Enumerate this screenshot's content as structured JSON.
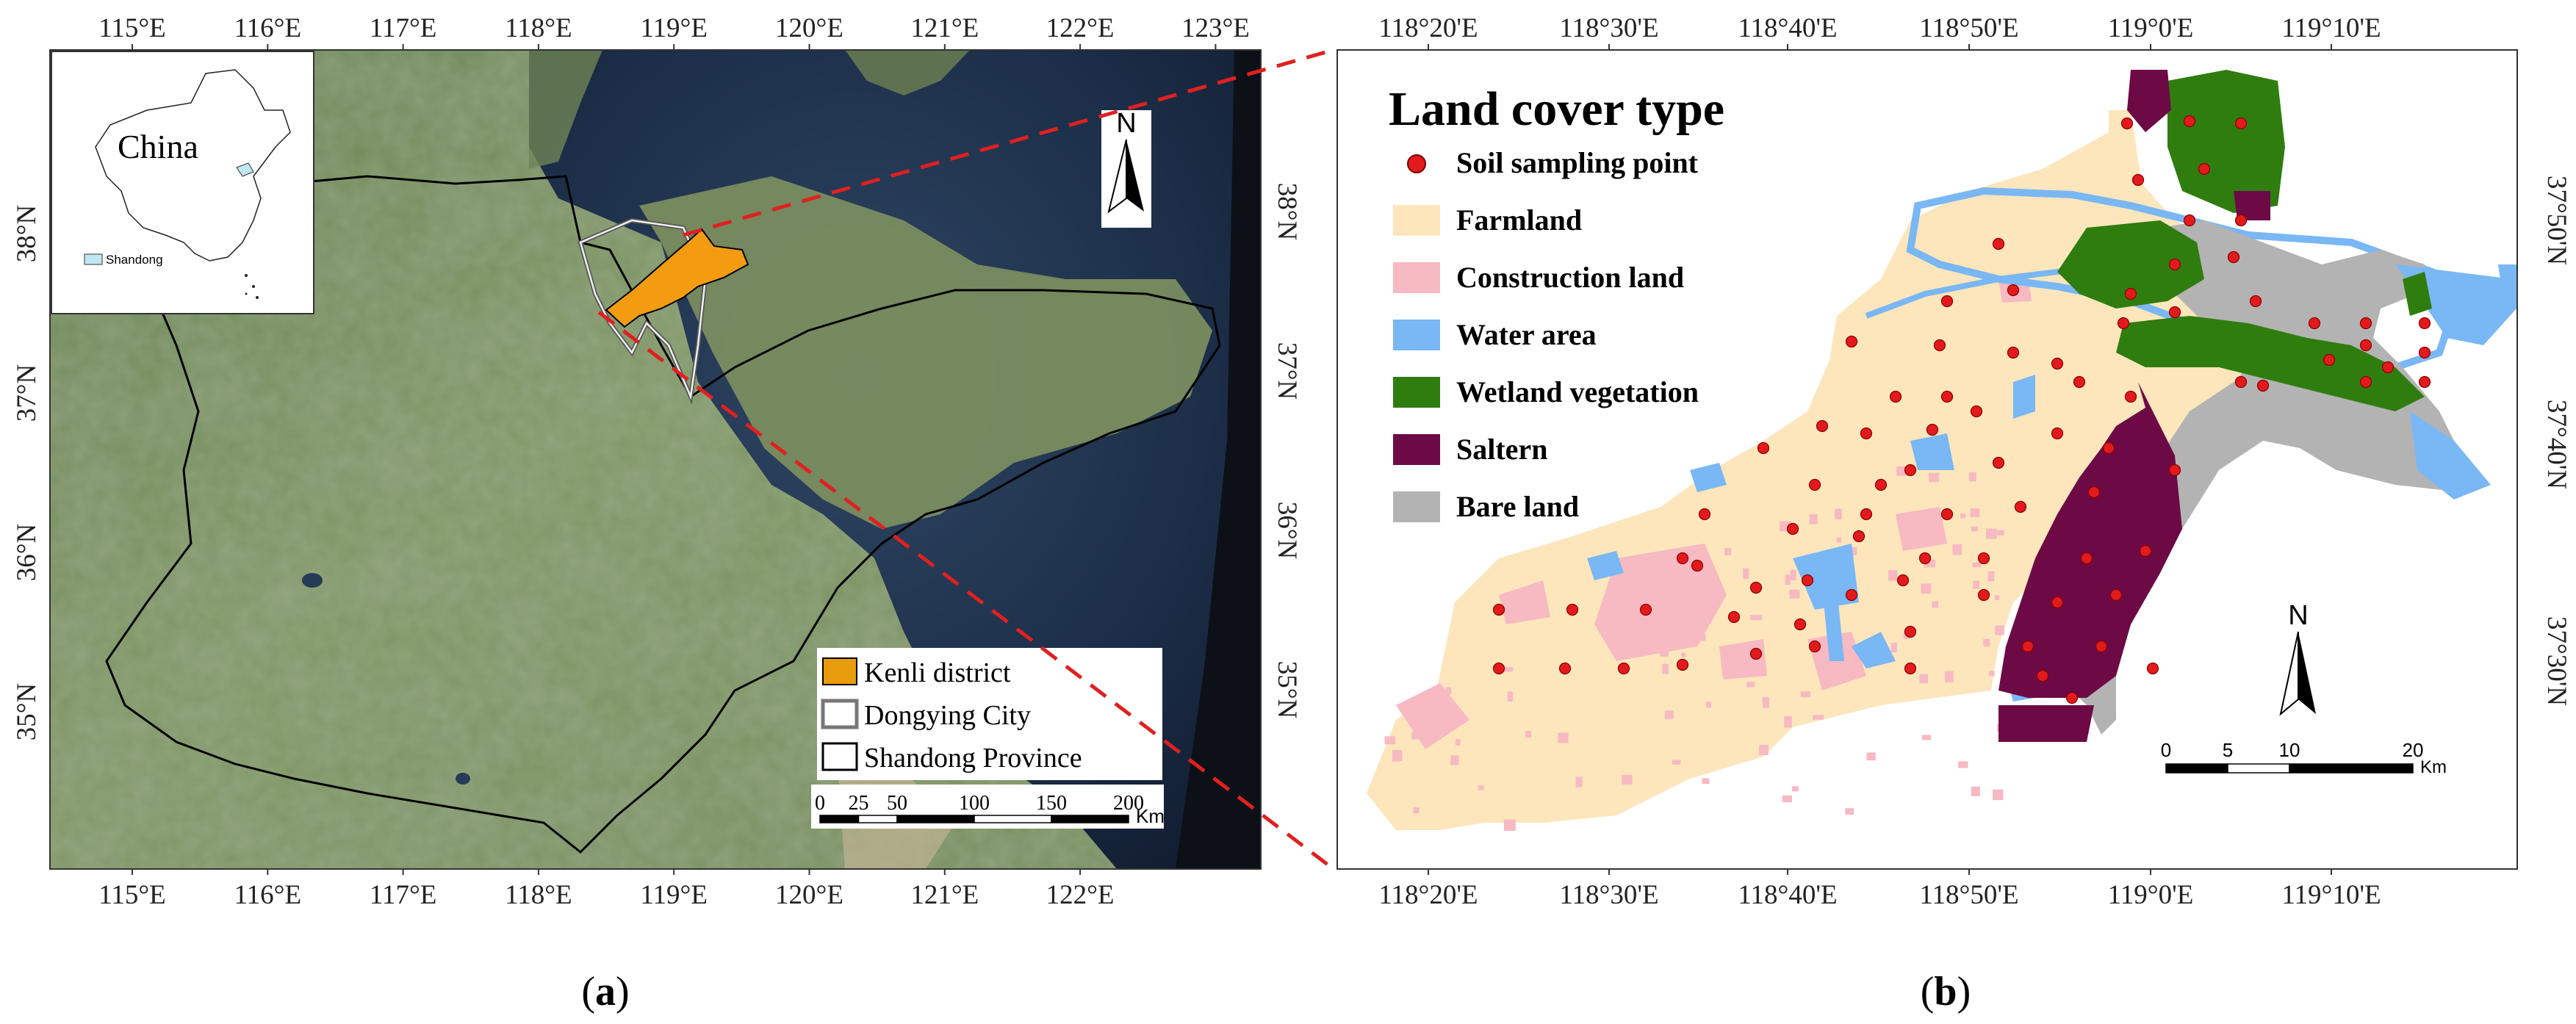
{
  "panel_a": {
    "caption_open": "(",
    "caption_letter": "a",
    "caption_close": ")",
    "top_ticks": [
      "115°E",
      "116°E",
      "117°E",
      "118°E",
      "119°E",
      "120°E",
      "121°E",
      "122°E",
      "123°E"
    ],
    "bottom_ticks": [
      "115°E",
      "116°E",
      "117°E",
      "118°E",
      "119°E",
      "120°E",
      "121°E",
      "122°E"
    ],
    "left_ticks": [
      "38°N",
      "37°N",
      "36°N",
      "35°N"
    ],
    "right_ticks": [
      "38°N",
      "37°N",
      "36°N",
      "35°N"
    ],
    "north_label": "N",
    "inset": {
      "country": "China",
      "province": "Shandong"
    },
    "legend": {
      "items": [
        {
          "label": "Kenli district",
          "color": "#e89b0c",
          "style": "fill"
        },
        {
          "label": "Dongying City",
          "color": "#777777",
          "style": "double-outline"
        },
        {
          "label": "Shandong Province",
          "color": "#000000",
          "style": "outline"
        }
      ]
    },
    "scalebar": {
      "ticks": [
        "0",
        "25",
        "50",
        "100",
        "150",
        "200"
      ],
      "unit": "Km"
    }
  },
  "panel_b": {
    "caption_open": "(",
    "caption_letter": "b",
    "caption_close": ")",
    "legend_title": "Land cover type",
    "legend_items": [
      {
        "label": "Soil sampling point",
        "color": "#e31a1c",
        "style": "point"
      },
      {
        "label": "Farmland",
        "color": "#fde6bc",
        "style": "fill"
      },
      {
        "label": "Construction land",
        "color": "#f7b9c2",
        "style": "fill"
      },
      {
        "label": "Water area",
        "color": "#79b7f5",
        "style": "fill"
      },
      {
        "label": "Wetland vegetation",
        "color": "#2f7d0f",
        "style": "fill"
      },
      {
        "label": "Saltern",
        "color": "#6d0a45",
        "style": "fill"
      },
      {
        "label": "Bare land",
        "color": "#b3b3b3",
        "style": "fill"
      }
    ],
    "top_ticks": [
      "118°20'E",
      "118°30'E",
      "118°40'E",
      "118°50'E",
      "119°0'E",
      "119°10'E"
    ],
    "bottom_ticks": [
      "118°20'E",
      "118°30'E",
      "118°40'E",
      "118°50'E",
      "119°0'E",
      "119°10'E"
    ],
    "right_ticks": [
      "37°50'N",
      "37°40'N",
      "37°30'N"
    ],
    "north_label": "N",
    "scalebar": {
      "ticks": [
        "0",
        "5",
        "10",
        "20"
      ],
      "unit": "Km"
    }
  }
}
